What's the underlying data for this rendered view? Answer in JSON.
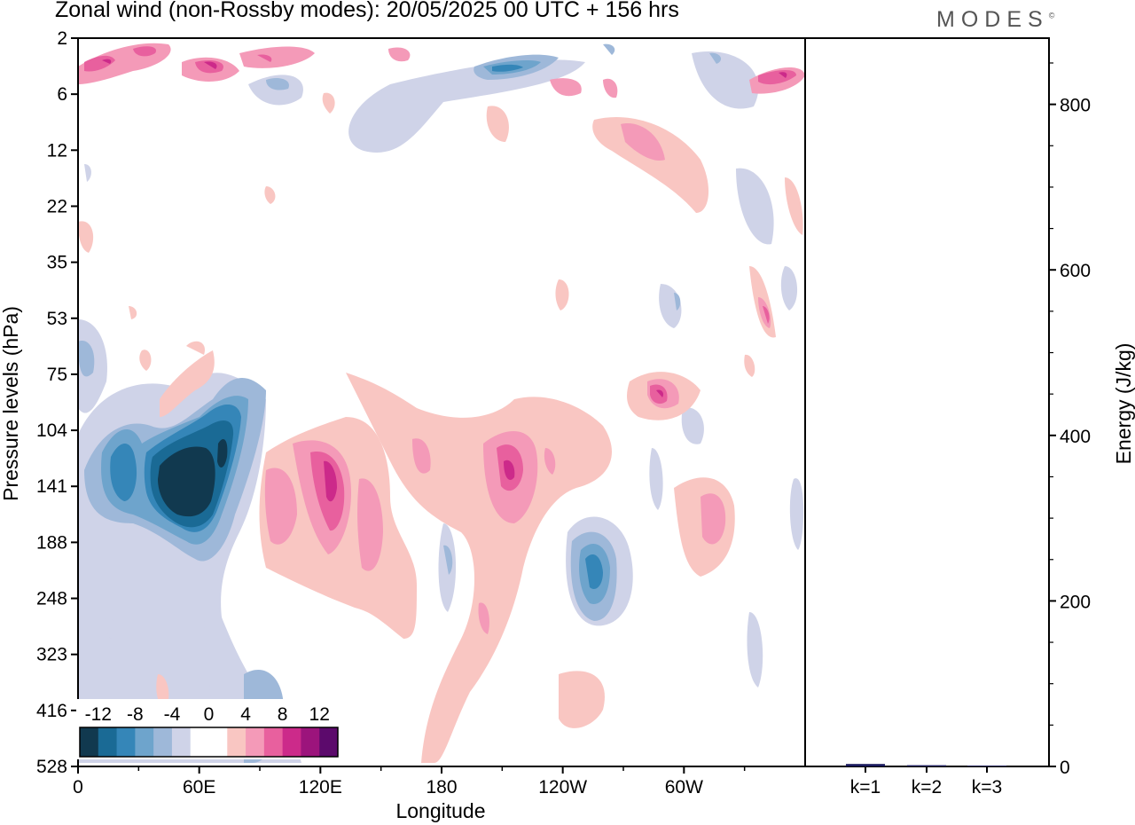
{
  "header": {
    "title": "Zonal wind (non-Rossby modes):  20/05/2025  00 UTC  + 156 hrs",
    "logo": "MODES",
    "logo_mark": "©"
  },
  "chart_data": [
    {
      "type": "heatmap",
      "title": "Zonal wind (non-Rossby modes):  20/05/2025  00 UTC  + 156 hrs",
      "xlabel": "Longitude",
      "ylabel": "Pressure levels (hPa)",
      "x_ticks": [
        "0",
        "60E",
        "120E",
        "180",
        "120W",
        "60W"
      ],
      "x_tick_values": [
        0,
        60,
        120,
        180,
        240,
        300
      ],
      "xlim": [
        0,
        360
      ],
      "y_ticks": [
        "2",
        "6",
        "12",
        "22",
        "35",
        "53",
        "75",
        "104",
        "141",
        "188",
        "248",
        "323",
        "416",
        "528"
      ],
      "y_scale": "model levels",
      "y_inverted": true,
      "colorbar": {
        "labels": [
          "-12",
          "-8",
          "-4",
          "0",
          "4",
          "8",
          "12"
        ],
        "levels": [
          -14,
          -12,
          -10,
          -8,
          -6,
          -4,
          -2,
          2,
          4,
          6,
          8,
          10,
          12,
          14
        ],
        "colors": [
          "#11394f",
          "#1a6a95",
          "#3586b8",
          "#6ea4cc",
          "#9eb8d9",
          "#cfd3e8",
          "#ffffff",
          "#ffffff",
          "#f9c6c2",
          "#f49ab8",
          "#e8609e",
          "#cc2a8a",
          "#9c147c",
          "#5c0a6c"
        ]
      },
      "features": [
        {
          "label": "negative core",
          "lon": 62,
          "level": "141",
          "value": -14
        },
        {
          "label": "negative band",
          "lon": 40,
          "level": "141",
          "value": -8
        },
        {
          "label": "positive core",
          "lon": 128,
          "level": "141",
          "value": 8
        },
        {
          "label": "positive core",
          "lon": 215,
          "level": "141",
          "value": 8
        },
        {
          "label": "negative core",
          "lon": 258,
          "level": "248",
          "value": -8
        },
        {
          "label": "positive core",
          "lon": 293,
          "level": "104",
          "value": 8
        },
        {
          "label": "positive band",
          "lon": 15,
          "level": "6",
          "value": 8
        },
        {
          "label": "negative band",
          "lon": 210,
          "level": "6",
          "value": -8
        }
      ]
    },
    {
      "type": "bar",
      "categories": [
        "k=1",
        "k=2",
        "k=3"
      ],
      "values": [
        3,
        1.5,
        1
      ],
      "ylabel": "Energy (J/kg)",
      "ylim": [
        0,
        880
      ],
      "y_ticks": [
        "0",
        "200",
        "400",
        "600",
        "800"
      ],
      "bar_color": "#1a1a5e"
    }
  ]
}
